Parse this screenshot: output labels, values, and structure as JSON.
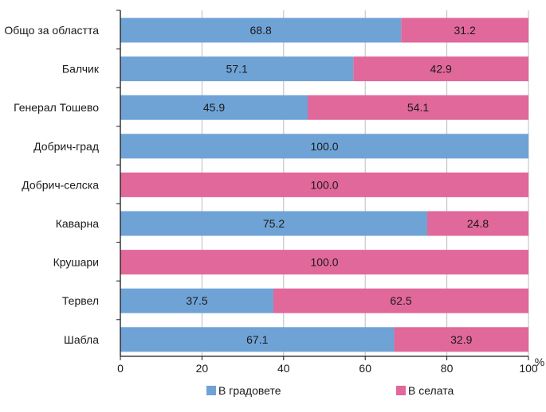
{
  "chart_data": {
    "type": "bar",
    "orientation": "horizontal",
    "stacked": true,
    "title": "",
    "xlabel": "",
    "ylabel": "",
    "x_unit": "%",
    "xlim": [
      0,
      100
    ],
    "x_ticks": [
      0,
      20,
      40,
      60,
      80,
      100
    ],
    "grid": true,
    "legend_position": "bottom",
    "categories": [
      "Общо за областта",
      "Балчик",
      "Генерал Тошево",
      "Добрич-град",
      "Добрич-селска",
      "Каварна",
      "Крушари",
      "Тервел",
      "Шабла"
    ],
    "series": [
      {
        "name": "В градовете",
        "color": "#6fa3d6",
        "values": [
          68.8,
          57.1,
          45.9,
          100.0,
          0.0,
          75.2,
          0.0,
          37.5,
          67.1
        ],
        "labels": [
          "68.8",
          "57.1",
          "45.9",
          "100.0",
          "",
          "75.2",
          "",
          "37.5",
          "67.1"
        ]
      },
      {
        "name": "В селата",
        "color": "#e0689a",
        "values": [
          31.2,
          42.9,
          54.1,
          0.0,
          100.0,
          24.8,
          100.0,
          62.5,
          32.9
        ],
        "labels": [
          "31.2",
          "42.9",
          "54.1",
          "",
          "100.0",
          "24.8",
          "100.0",
          "62.5",
          "32.9"
        ]
      }
    ]
  },
  "legend": {
    "items": [
      {
        "label": "В градовете",
        "color": "#6fa3d6"
      },
      {
        "label": "В селата",
        "color": "#e0689a"
      }
    ]
  }
}
